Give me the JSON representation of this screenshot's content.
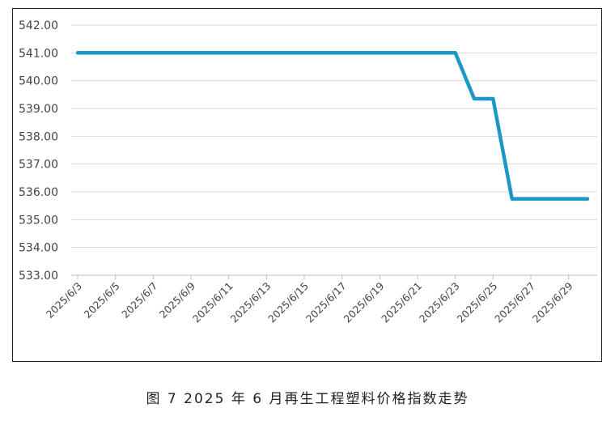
{
  "caption": "图 7  2025 年 6 月再生工程塑料价格指数走势",
  "chart_data": {
    "type": "line",
    "title": "",
    "xlabel": "",
    "ylabel": "",
    "ylim": [
      533,
      542
    ],
    "yticks": [
      "533.00",
      "534.00",
      "535.00",
      "536.00",
      "537.00",
      "538.00",
      "539.00",
      "540.00",
      "541.00",
      "542.00"
    ],
    "x": [
      "2025/6/3",
      "2025/6/4",
      "2025/6/5",
      "2025/6/6",
      "2025/6/7",
      "2025/6/8",
      "2025/6/9",
      "2025/6/10",
      "2025/6/11",
      "2025/6/12",
      "2025/6/13",
      "2025/6/14",
      "2025/6/15",
      "2025/6/16",
      "2025/6/17",
      "2025/6/18",
      "2025/6/19",
      "2025/6/20",
      "2025/6/21",
      "2025/6/22",
      "2025/6/23",
      "2025/6/24",
      "2025/6/25",
      "2025/6/26",
      "2025/6/27",
      "2025/6/28",
      "2025/6/29",
      "2025/6/30"
    ],
    "xtick_labels": [
      "2025/6/3",
      "2025/6/5",
      "2025/6/7",
      "2025/6/9",
      "2025/6/11",
      "2025/6/13",
      "2025/6/15",
      "2025/6/17",
      "2025/6/19",
      "2025/6/21",
      "2025/6/23",
      "2025/6/25",
      "2025/6/27",
      "2025/6/29"
    ],
    "series": [
      {
        "color": "#1b98c4",
        "values": [
          541.0,
          541.0,
          541.0,
          541.0,
          541.0,
          541.0,
          541.0,
          541.0,
          541.0,
          541.0,
          541.0,
          541.0,
          541.0,
          541.0,
          541.0,
          541.0,
          541.0,
          541.0,
          541.0,
          541.0,
          541.0,
          539.35,
          539.35,
          535.75,
          535.75,
          535.75,
          535.75,
          535.75
        ]
      }
    ],
    "grid": true,
    "legend": "none"
  }
}
